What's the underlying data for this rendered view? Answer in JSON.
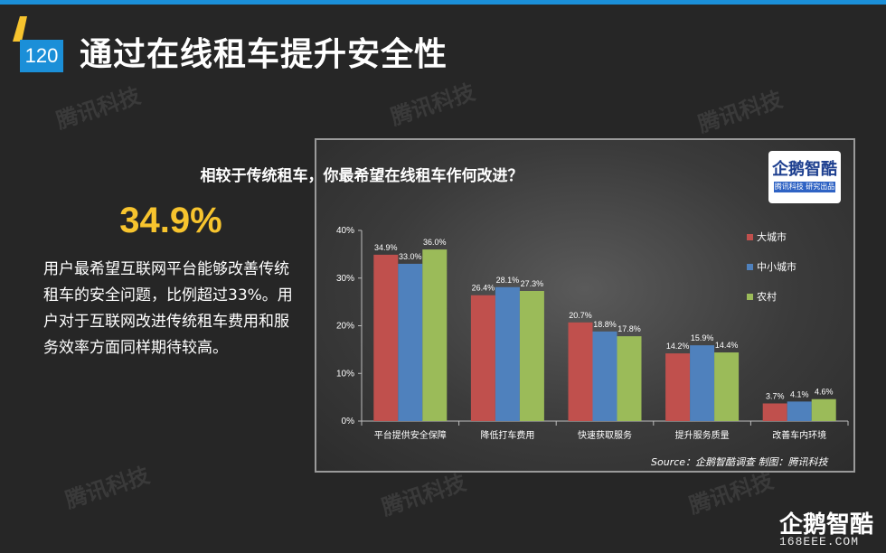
{
  "header": {
    "page_number": "120",
    "title": "通过在线租车提升安全性"
  },
  "watermark": {
    "text": "腾讯科技"
  },
  "highlight": {
    "value": "34.9%",
    "description": "用户最希望互联网平台能够改善传统租车的安全问题，比例超过33%。用户对于互联网改进传统租车费用和服务效率方面同样期待较高。"
  },
  "chart_logo": {
    "name": "企鹅智酷",
    "subtitle": "腾讯科技  研究出品"
  },
  "chart_data": {
    "type": "bar",
    "title": "相较于传统租车，你最希望在线租车作何改进？",
    "categories": [
      "平台提供安全保障",
      "降低打车费用",
      "快速获取服务",
      "提升服务质量",
      "改善车内环境"
    ],
    "series": [
      {
        "name": "大城市",
        "values": [
          34.9,
          26.4,
          20.7,
          14.2,
          3.7
        ],
        "color": "#c0504d"
      },
      {
        "name": "中小城市",
        "values": [
          33.0,
          28.1,
          18.8,
          15.9,
          4.1
        ],
        "color": "#4f81bd"
      },
      {
        "name": "农村",
        "values": [
          36.0,
          27.3,
          17.8,
          14.4,
          4.6
        ],
        "color": "#9bbb59"
      }
    ],
    "y_ticks": [
      "0%",
      "10%",
      "20%",
      "30%",
      "40%"
    ],
    "ylim": [
      0,
      40
    ],
    "value_suffix": "%",
    "legend_position": "right",
    "grid": false,
    "source": "Source：企鹅智酷调查  制图：腾讯科技"
  },
  "footer": {
    "brand": "企鹅智酷",
    "site": "168EEE.COM"
  }
}
